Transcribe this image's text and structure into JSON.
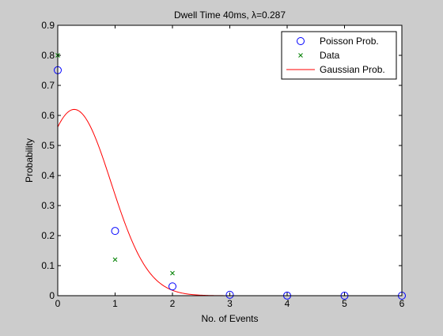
{
  "chart_data": {
    "type": "scatter",
    "title": "Dwell Time 40ms, λ=0.287",
    "xlabel": "No. of Events",
    "ylabel": "Probability",
    "xlim": [
      0,
      6
    ],
    "ylim": [
      0,
      0.9
    ],
    "xticks": [
      "0",
      "1",
      "2",
      "3",
      "4",
      "5",
      "6"
    ],
    "yticks": [
      "0",
      "0.1",
      "0.2",
      "0.3",
      "0.4",
      "0.5",
      "0.6",
      "0.7",
      "0.8",
      "0.9"
    ],
    "grid": false,
    "legend_position": "top-right",
    "series": [
      {
        "name": "Poisson Prob.",
        "marker": "circle",
        "color": "#0000ff",
        "x": [
          0,
          1,
          2,
          3,
          4,
          5,
          6
        ],
        "y": [
          0.7505,
          0.2154,
          0.0309,
          0.003,
          0.0002,
          0.0,
          0.0
        ]
      },
      {
        "name": "Data",
        "marker": "x",
        "color": "#008000",
        "x": [
          0,
          1,
          2
        ],
        "y": [
          0.8,
          0.12,
          0.075
        ]
      },
      {
        "name": "Gaussian Prob.",
        "marker": "line",
        "color": "#ff0000",
        "x_range": [
          0,
          5.8
        ],
        "mean": 0.287,
        "sigma": 0.6434,
        "amplitude": 0.62
      }
    ]
  }
}
